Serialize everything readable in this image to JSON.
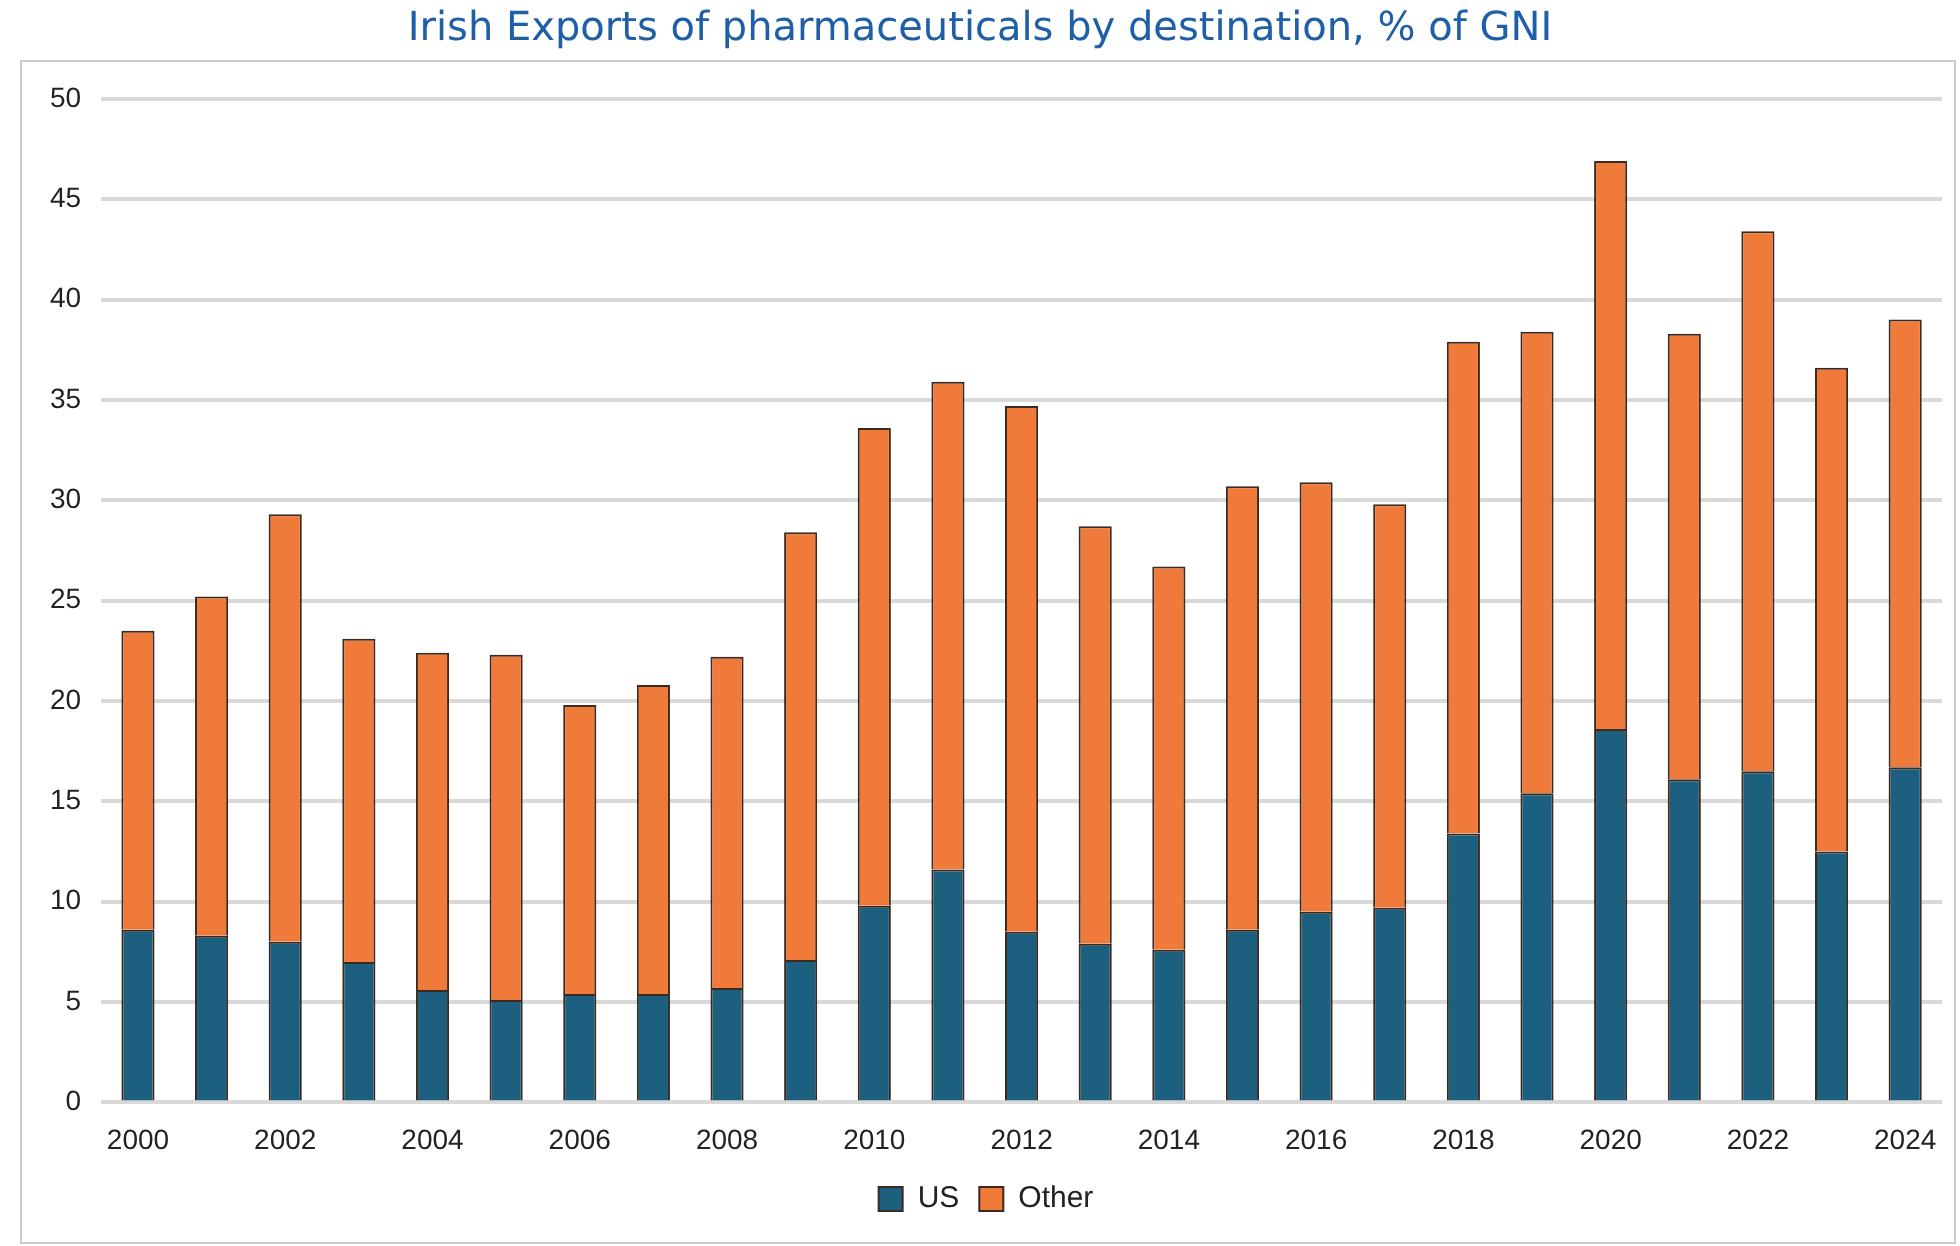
{
  "chart_data": {
    "type": "bar",
    "title": "Irish Exports of pharmaceuticals by destination, % of GNI",
    "stacked": true,
    "categories": [
      "2000",
      null,
      "2002",
      null,
      "2004",
      null,
      "2006",
      null,
      "2008",
      null,
      "2010",
      null,
      "2012",
      null,
      "2014",
      null,
      "2016",
      null,
      "2018",
      null,
      "2020",
      null,
      "2022",
      null,
      "2024"
    ],
    "series": [
      {
        "name": "US",
        "color": "#1d5f7e",
        "values": [
          8.6,
          8.3,
          8.0,
          7.0,
          5.6,
          5.1,
          5.4,
          5.4,
          5.7,
          7.1,
          9.8,
          11.6,
          8.5,
          7.9,
          7.6,
          8.6,
          9.5,
          9.7,
          13.4,
          15.4,
          18.6,
          16.1,
          16.5,
          12.5,
          16.7
        ]
      },
      {
        "name": "Other",
        "color": "#f07a3a",
        "values": [
          14.9,
          16.9,
          21.3,
          16.1,
          16.8,
          17.2,
          14.4,
          15.4,
          16.5,
          21.3,
          23.8,
          24.3,
          26.2,
          20.8,
          19.1,
          22.1,
          21.4,
          20.1,
          24.5,
          23.0,
          28.3,
          22.2,
          26.9,
          24.1,
          22.3
        ]
      }
    ],
    "ylim": [
      0,
      50
    ],
    "yticks": [
      0,
      5,
      10,
      15,
      20,
      25,
      30,
      35,
      40,
      45,
      50
    ],
    "grid": "y",
    "legend": "bottom"
  }
}
